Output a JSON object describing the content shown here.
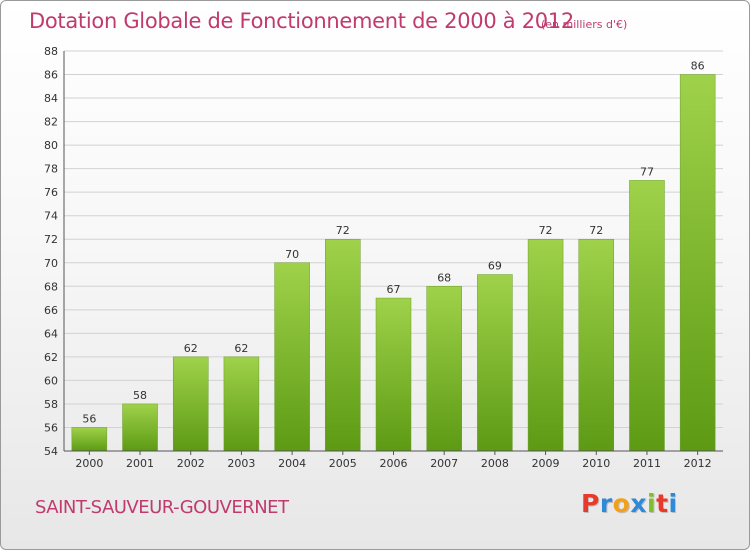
{
  "chart_data": {
    "type": "bar",
    "title": "Dotation Globale de Fonctionnement de 2000 à 2012",
    "subtitle": "(en milliers d'€)",
    "categories": [
      "2000",
      "2001",
      "2002",
      "2003",
      "2004",
      "2005",
      "2006",
      "2007",
      "2008",
      "2009",
      "2010",
      "2011",
      "2012"
    ],
    "values": [
      56,
      58,
      62,
      62,
      70,
      72,
      67,
      68,
      69,
      72,
      72,
      77,
      86
    ],
    "xlabel": "",
    "ylabel": "",
    "ylim": [
      54,
      88
    ],
    "yticks": [
      54,
      56,
      58,
      60,
      62,
      64,
      66,
      68,
      70,
      72,
      74,
      76,
      78,
      80,
      82,
      84,
      86,
      88
    ],
    "grid": true,
    "bar_color_top": "#9fd24a",
    "bar_color_bottom": "#5d9a14"
  },
  "footer": {
    "commune": "SAINT-SAUVEUR-GOUVERNET",
    "logo_text": "Proxiti"
  },
  "colors": {
    "accent": "#c03a6e",
    "logo_letters": [
      "#e8392b",
      "#2e8ad8",
      "#f2a019",
      "#2e8ad8",
      "#7fbf2b",
      "#e8392b",
      "#2e8ad8"
    ]
  }
}
